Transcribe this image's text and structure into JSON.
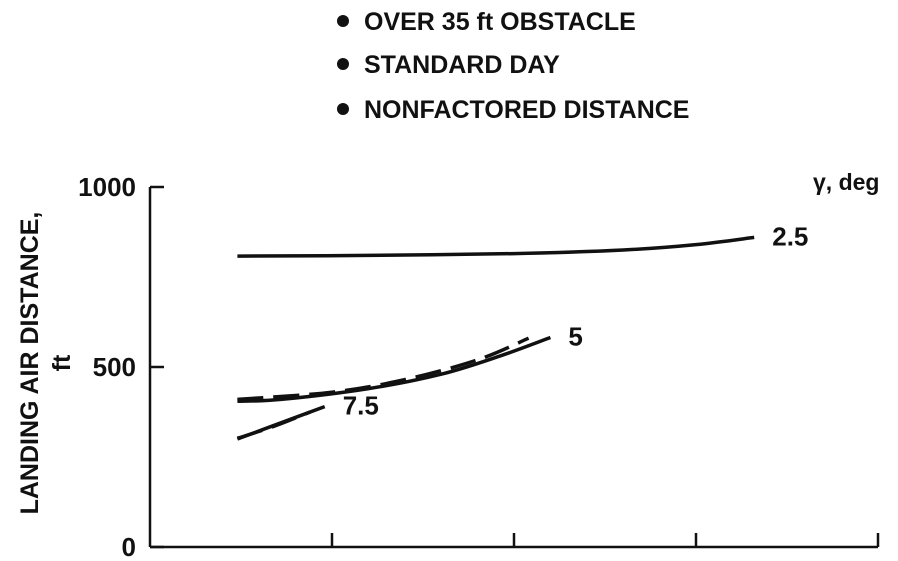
{
  "notes": [
    "OVER 35 ft OBSTACLE",
    "STANDARD DAY",
    "NONFACTORED DISTANCE"
  ],
  "chart_data": {
    "type": "line",
    "title": "",
    "ylabel_lines": [
      "LANDING AIR DISTANCE,",
      "ft"
    ],
    "xlabel": "",
    "ylim": [
      0,
      1000
    ],
    "yticks": [
      0,
      500,
      1000
    ],
    "ytick_labels": [
      "0",
      "500",
      "1000"
    ],
    "xlim": [
      0,
      1
    ],
    "xticks": [
      0.25,
      0.5,
      0.75
    ],
    "grid": false,
    "legend_title": "γ, deg",
    "series": [
      {
        "name": "2.5",
        "style": "solid",
        "x": [
          0.12,
          0.3,
          0.5,
          0.65,
          0.75,
          0.83
        ],
        "y": [
          808,
          810,
          815,
          825,
          840,
          860
        ]
      },
      {
        "name": "5",
        "style": "solid",
        "x": [
          0.12,
          0.18,
          0.3,
          0.4,
          0.48,
          0.55
        ],
        "y": [
          405,
          410,
          440,
          480,
          530,
          582
        ]
      },
      {
        "name": "",
        "style": "dashed",
        "x": [
          0.12,
          0.25,
          0.35,
          0.45,
          0.52
        ],
        "y": [
          410,
          430,
          465,
          520,
          580
        ]
      },
      {
        "name": "7.5",
        "style": "solid",
        "x": [
          0.12,
          0.18,
          0.24
        ],
        "y": [
          300,
          345,
          390
        ]
      },
      {
        "name": "",
        "style": "dashed",
        "x": [
          0.12,
          0.17,
          0.22
        ],
        "y": [
          302,
          335,
          375
        ]
      }
    ]
  }
}
